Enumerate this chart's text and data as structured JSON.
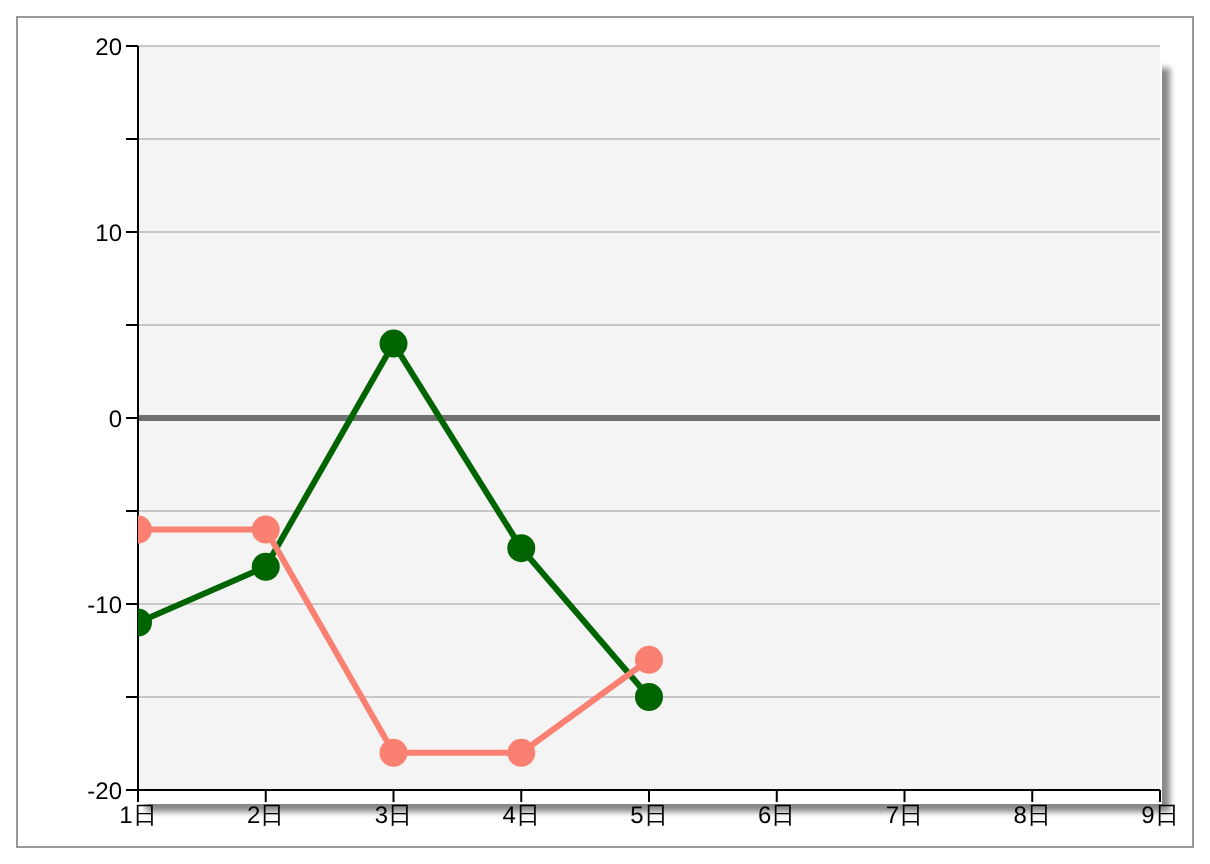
{
  "chart_data": {
    "type": "line",
    "categories": [
      "1日",
      "2日",
      "3日",
      "4日",
      "5日",
      "6日",
      "7日",
      "8日",
      "9日"
    ],
    "series": [
      {
        "color": "#006400",
        "values": [
          -11,
          -8,
          4,
          -7,
          -15,
          null,
          null,
          null,
          null
        ]
      },
      {
        "color": "#fa8072",
        "values": [
          -6,
          -6,
          -18,
          -18,
          -13,
          null,
          null,
          null,
          null
        ]
      }
    ],
    "ylim": [
      -20,
      20
    ],
    "yticks": [
      -20,
      {
        "value": -15,
        "label": null
      },
      -10,
      {
        "value": -5,
        "label": null
      },
      0,
      {
        "value": 5,
        "label": null
      },
      10,
      {
        "value": 15,
        "label": null
      },
      20
    ],
    "ref_lines": [
      {
        "axis": "y",
        "value": 0,
        "color": "#707070"
      }
    ],
    "grid": "y",
    "marker": "circle",
    "line_style": "solid",
    "legend": false
  }
}
